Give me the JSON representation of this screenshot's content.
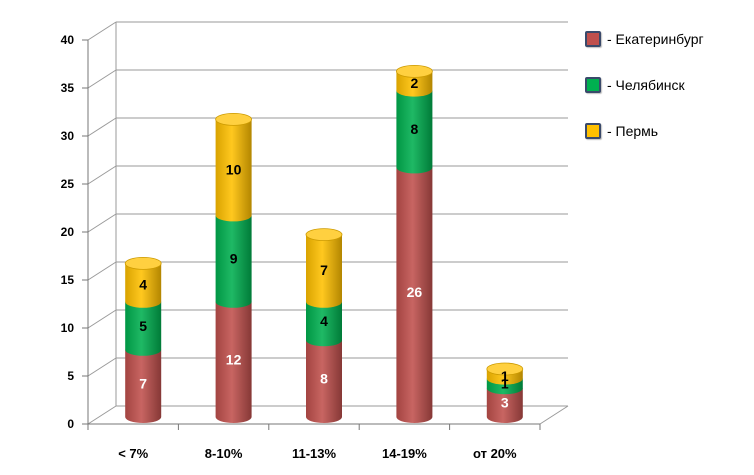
{
  "chart_data": {
    "type": "bar",
    "stacked": true,
    "categories": [
      "< 7%",
      "8-10%",
      "11-13%",
      "14-19%",
      "от 20%"
    ],
    "series": [
      {
        "name": "- Екатеринбург",
        "values": [
          7,
          12,
          8,
          26,
          3
        ],
        "color": "#c0504d"
      },
      {
        "name": "- Челябинск",
        "values": [
          5,
          9,
          4,
          8,
          1
        ],
        "color": "#00b050"
      },
      {
        "name": "- Пермь",
        "values": [
          4,
          10,
          7,
          2,
          1
        ],
        "color": "#ffc000"
      }
    ],
    "ylim": [
      0,
      40
    ],
    "yticks": [
      0,
      5,
      10,
      15,
      20,
      25,
      30,
      35,
      40
    ],
    "grid": true,
    "legend_position": "right",
    "data_label_colors": [
      "#ffffff",
      "#000000",
      "#000000"
    ]
  }
}
